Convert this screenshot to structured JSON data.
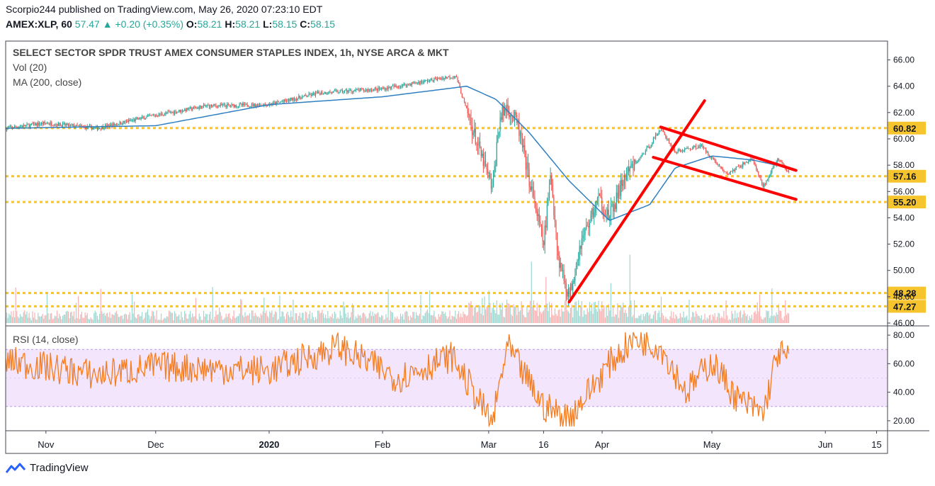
{
  "header": {
    "publisher_line": "Scorpio244 published on TradingView.com, May 26, 2020 07:23:10 EDT",
    "symbol": "AMEX:XLP, 60",
    "last": "57.47",
    "change_arrow": "▲",
    "change": "+0.20 (+0.35%)",
    "open_label": "O:",
    "open": "58.21",
    "high_label": "H:",
    "high": "58.21",
    "low_label": "L:",
    "low": "58.15",
    "close_label": "C:",
    "close": "58.15"
  },
  "legend": {
    "title": "SELECT SECTOR SPDR TRUST AMEX CONSUMER STAPLES INDEX, 1h, NYSE ARCA & MKT",
    "vol": "Vol (20)",
    "ma": "MA (200, close)",
    "rsi": "RSI (14, close)"
  },
  "footer": {
    "brand": "TradingView",
    "brand_icon": "tradingview-logo-icon"
  },
  "colors": {
    "up": "#26a69a",
    "down": "#ef5350",
    "ma": "#2f7fc1",
    "rsi": "#f57c1f",
    "level": "#f6c42d",
    "trend": "#ff0000",
    "rsi_band": "#f3e5fb"
  },
  "chart_data": [
    {
      "type": "candlestick",
      "title": "SELECT SECTOR SPDR TRUST AMEX CONSUMER STAPLES INDEX, 1h, NYSE ARCA & MKT",
      "x_tick_labels": [
        "Nov",
        "Dec",
        "2020",
        "Feb",
        "Mar",
        "16",
        "Apr",
        "May",
        "Jun",
        "15"
      ],
      "y_tick_labels": [
        "46.00",
        "48.00",
        "50.00",
        "52.00",
        "54.00",
        "56.00",
        "58.00",
        "60.00",
        "62.00",
        "64.00",
        "66.00"
      ],
      "ylim": [
        46,
        67
      ],
      "price_path": [
        {
          "x": "Oct 21",
          "y": 60.8
        },
        {
          "x": "Nov 01",
          "y": 61.2
        },
        {
          "x": "Nov 15",
          "y": 60.8
        },
        {
          "x": "Dec 01",
          "y": 61.8
        },
        {
          "x": "Dec 15",
          "y": 62.5
        },
        {
          "x": "Jan 01",
          "y": 62.6
        },
        {
          "x": "Jan 15",
          "y": 63.5
        },
        {
          "x": "Feb 01",
          "y": 63.8
        },
        {
          "x": "Feb 15",
          "y": 64.5
        },
        {
          "x": "Feb 21",
          "y": 64.8
        },
        {
          "x": "Feb 27",
          "y": 59.5
        },
        {
          "x": "Mar 02",
          "y": 56.2
        },
        {
          "x": "Mar 04",
          "y": 61.5
        },
        {
          "x": "Mar 06",
          "y": 62.5
        },
        {
          "x": "Mar 09",
          "y": 61.0
        },
        {
          "x": "Mar 12",
          "y": 57.0
        },
        {
          "x": "Mar 16",
          "y": 52.0
        },
        {
          "x": "Mar 18",
          "y": 57.3
        },
        {
          "x": "Mar 20",
          "y": 51.0
        },
        {
          "x": "Mar 23",
          "y": 48.0
        },
        {
          "x": "Mar 26",
          "y": 52.0
        },
        {
          "x": "Mar 31",
          "y": 55.5
        },
        {
          "x": "Apr 03",
          "y": 54.0
        },
        {
          "x": "Apr 07",
          "y": 57.0
        },
        {
          "x": "Apr 14",
          "y": 59.5
        },
        {
          "x": "Apr 17",
          "y": 60.8
        },
        {
          "x": "Apr 21",
          "y": 59.0
        },
        {
          "x": "Apr 28",
          "y": 59.5
        },
        {
          "x": "May 05",
          "y": 57.3
        },
        {
          "x": "May 12",
          "y": 58.5
        },
        {
          "x": "May 15",
          "y": 56.3
        },
        {
          "x": "May 19",
          "y": 58.5
        },
        {
          "x": "May 22",
          "y": 57.4
        }
      ],
      "ma_200_path": [
        {
          "x": "Oct 21",
          "y": 60.8
        },
        {
          "x": "Dec 01",
          "y": 61.0
        },
        {
          "x": "Jan 01",
          "y": 62.6
        },
        {
          "x": "Feb 01",
          "y": 63.2
        },
        {
          "x": "Feb 24",
          "y": 64.0
        },
        {
          "x": "Mar 03",
          "y": 63.0
        },
        {
          "x": "Mar 12",
          "y": 60.5
        },
        {
          "x": "Mar 23",
          "y": 56.8
        },
        {
          "x": "Apr 03",
          "y": 53.8
        },
        {
          "x": "Apr 14",
          "y": 55.0
        },
        {
          "x": "Apr 21",
          "y": 57.8
        },
        {
          "x": "May 01",
          "y": 58.7
        },
        {
          "x": "May 12",
          "y": 58.4
        },
        {
          "x": "May 22",
          "y": 57.8
        }
      ],
      "horizontal_levels": [
        {
          "label": "60.82",
          "value": 60.82
        },
        {
          "label": "57.16",
          "value": 57.16
        },
        {
          "label": "55.20",
          "value": 55.2
        },
        {
          "label": "48.28",
          "value": 48.28
        },
        {
          "label": "47.27",
          "value": 47.27
        }
      ],
      "trend_lines": [
        {
          "from": {
            "x": "Mar 23",
            "y": 47.6
          },
          "to": {
            "x": "Apr 29",
            "y": 62.9
          }
        },
        {
          "from": {
            "x": "Apr 17",
            "y": 60.9
          },
          "to": {
            "x": "May 24",
            "y": 57.6
          }
        },
        {
          "from": {
            "x": "Apr 15",
            "y": 58.6
          },
          "to": {
            "x": "May 24",
            "y": 55.4
          }
        }
      ]
    },
    {
      "type": "line",
      "title": "RSI (14, close)",
      "y_tick_labels": [
        "20.00",
        "40.00",
        "60.00",
        "80.00"
      ],
      "ylim": [
        14,
        84
      ],
      "band": [
        30,
        70
      ],
      "path": [
        {
          "x": "Oct 21",
          "y": 62
        },
        {
          "x": "Nov 15",
          "y": 52
        },
        {
          "x": "Dec 01",
          "y": 58
        },
        {
          "x": "Jan 01",
          "y": 55
        },
        {
          "x": "Jan 20",
          "y": 72
        },
        {
          "x": "Feb 05",
          "y": 50
        },
        {
          "x": "Feb 20",
          "y": 65
        },
        {
          "x": "Feb 27",
          "y": 35
        },
        {
          "x": "Mar 02",
          "y": 18
        },
        {
          "x": "Mar 06",
          "y": 72
        },
        {
          "x": "Mar 16",
          "y": 30
        },
        {
          "x": "Mar 23",
          "y": 22
        },
        {
          "x": "Apr 03",
          "y": 60
        },
        {
          "x": "Apr 10",
          "y": 78
        },
        {
          "x": "Apr 17",
          "y": 72
        },
        {
          "x": "Apr 24",
          "y": 40
        },
        {
          "x": "May 01",
          "y": 62
        },
        {
          "x": "May 08",
          "y": 35
        },
        {
          "x": "May 15",
          "y": 25
        },
        {
          "x": "May 19",
          "y": 68
        },
        {
          "x": "May 22",
          "y": 63
        }
      ]
    }
  ]
}
